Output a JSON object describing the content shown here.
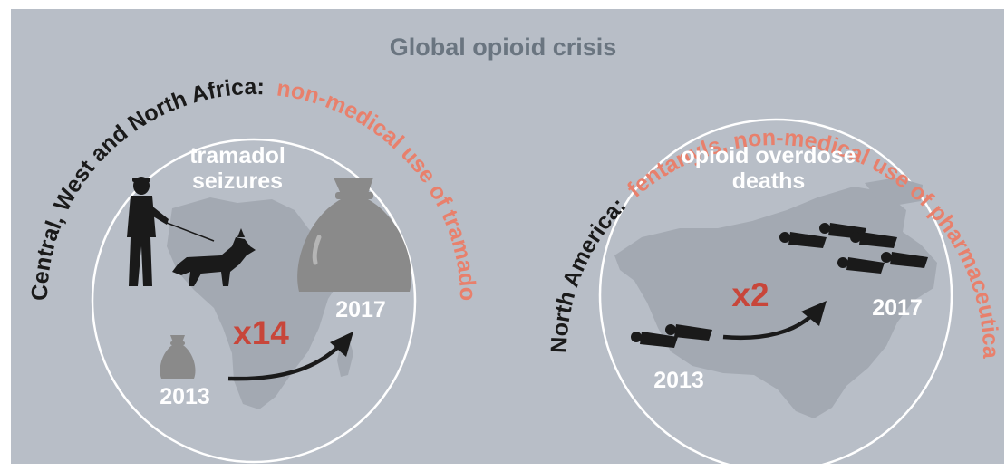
{
  "title": "Global opioid crisis",
  "left_panel": {
    "arc_dark": "Central, West and North Africa:",
    "arc_red": "non-medical use of tramadol",
    "label_line1": "tramadol",
    "label_line2": "seizures",
    "multiplier": "x14",
    "year_start": "2013",
    "year_end": "2017"
  },
  "right_panel": {
    "arc_dark": "North America:",
    "arc_red": "fentanyls, non-medical use of pharmaceutical opioids, heroin",
    "label_line1": "opioid overdose",
    "label_line2": "deaths",
    "multiplier": "x2",
    "year_start": "2013",
    "year_end": "2017"
  },
  "colors": {
    "background": "#b8bec7",
    "title": "#6a7580",
    "dark_text": "#1a1a1a",
    "accent_red": "#e8806c",
    "multiplier_red": "#c8463a",
    "map_fill": "#a3a9b2",
    "bag_fill": "#8a8a8a",
    "white": "#ffffff"
  }
}
